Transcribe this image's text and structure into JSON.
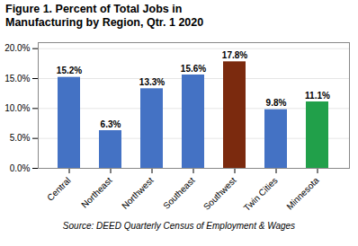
{
  "chart_data": {
    "type": "bar",
    "title": "Figure 1. Percent of Total Jobs in\nManufacturing by Region, Qtr. 1 2020",
    "categories": [
      "Central",
      "Northeast",
      "Northwest",
      "Southeast",
      "Southwest",
      "Twin Cities",
      "Minnesota"
    ],
    "values": [
      15.2,
      6.3,
      13.3,
      15.6,
      17.8,
      9.8,
      11.1
    ],
    "value_labels": [
      "15.2%",
      "6.3%",
      "13.3%",
      "15.6%",
      "17.8%",
      "9.8%",
      "11.1%"
    ],
    "colors": [
      "#4472C4",
      "#4472C4",
      "#4472C4",
      "#4472C4",
      "#7B2A0E",
      "#4472C4",
      "#21A04A"
    ],
    "ylim": [
      0,
      21
    ],
    "yticks": [
      {
        "value": 0.0,
        "label": "0.0%"
      },
      {
        "value": 5.0,
        "label": "5.0%"
      },
      {
        "value": 10.0,
        "label": "10.0%"
      },
      {
        "value": 15.0,
        "label": "15.0%"
      },
      {
        "value": 20.0,
        "label": "20.0%"
      }
    ],
    "grid": true,
    "data_labels": true,
    "annotations": [
      "Source: DEED Quarterly Census of Employment & Wages"
    ]
  }
}
